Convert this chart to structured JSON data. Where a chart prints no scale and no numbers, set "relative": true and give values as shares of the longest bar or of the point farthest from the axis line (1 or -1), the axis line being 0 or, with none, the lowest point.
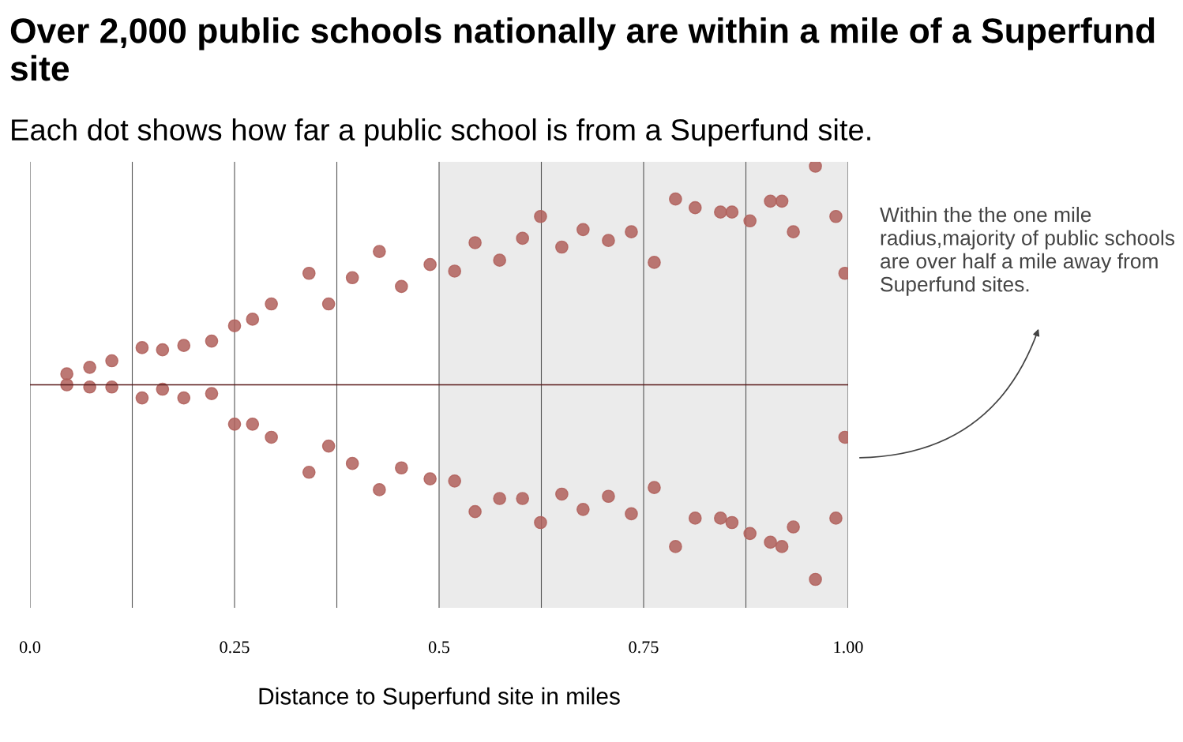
{
  "chart_data": {
    "type": "scatter",
    "title": "Over 2,000 public schools nationally are within a mile of a Superfund site",
    "subtitle": "Each dot shows how far a public school is from a Superfund site.",
    "xlabel": "Distance to Superfund site in miles",
    "annotations": [
      "Within the the one mile radius,majority of public schools are over half a mile away from Superfund sites."
    ],
    "series": [
      {
        "color": "#b0605c",
        "x": [
          0.045,
          0.045,
          0.073,
          0.073,
          0.1,
          0.1,
          0.137,
          0.137,
          0.162,
          0.162,
          0.188,
          0.188,
          0.222,
          0.222,
          0.25,
          0.25,
          0.272,
          0.272,
          0.295,
          0.295,
          0.341,
          0.341,
          0.365,
          0.365,
          0.394,
          0.394,
          0.427,
          0.427,
          0.454,
          0.454,
          0.489,
          0.489,
          0.519,
          0.519,
          0.544,
          0.544,
          0.574,
          0.574,
          0.602,
          0.602,
          0.624,
          0.624,
          0.65,
          0.65,
          0.676,
          0.676,
          0.707,
          0.707,
          0.735,
          0.735,
          0.763,
          0.763,
          0.789,
          0.789,
          0.813,
          0.813,
          0.844,
          0.844,
          0.858,
          0.858,
          0.88,
          0.88,
          0.905,
          0.905,
          0.919,
          0.919,
          0.933,
          0.933,
          0.96,
          0.96,
          0.985,
          0.985,
          0.996,
          0.996
        ],
        "values": [
          0.05,
          0.0,
          0.08,
          -0.01,
          0.11,
          -0.01,
          0.17,
          -0.06,
          0.16,
          -0.02,
          0.18,
          -0.06,
          0.2,
          -0.04,
          0.27,
          -0.18,
          0.3,
          -0.18,
          0.37,
          -0.24,
          0.51,
          -0.4,
          0.37,
          -0.28,
          0.49,
          -0.36,
          0.61,
          -0.48,
          0.45,
          -0.38,
          0.55,
          -0.43,
          0.52,
          -0.44,
          0.65,
          -0.58,
          0.57,
          -0.52,
          0.67,
          -0.52,
          0.77,
          -0.63,
          0.63,
          -0.5,
          0.71,
          -0.57,
          0.66,
          -0.51,
          0.7,
          -0.59,
          0.56,
          -0.47,
          0.85,
          -0.74,
          0.81,
          -0.61,
          0.79,
          -0.61,
          0.79,
          -0.63,
          0.75,
          -0.68,
          0.84,
          -0.72,
          0.84,
          -0.74,
          0.7,
          -0.65,
          1.0,
          -0.89,
          0.77,
          -0.61,
          0.51,
          -0.24
        ]
      }
    ],
    "marker": "circle",
    "xlim": [
      0,
      1.0
    ],
    "xticks": [
      {
        "value": 0,
        "label": "0.0"
      },
      {
        "value": 0.125,
        "label": null
      },
      {
        "value": 0.25,
        "label": "0.25"
      },
      {
        "value": 0.375,
        "label": null
      },
      {
        "value": 0.5,
        "label": "0.5"
      },
      {
        "value": 0.625,
        "label": null
      },
      {
        "value": 0.75,
        "label": "0.75"
      },
      {
        "value": 0.875,
        "label": null
      },
      {
        "value": 1.0,
        "label": "1.00"
      }
    ],
    "relative": true,
    "tick_labels": "x",
    "grid": "x",
    "bands": [
      {
        "axis": "x",
        "from": 0.5,
        "to": 1.0,
        "color": "#ebebeb"
      }
    ]
  }
}
